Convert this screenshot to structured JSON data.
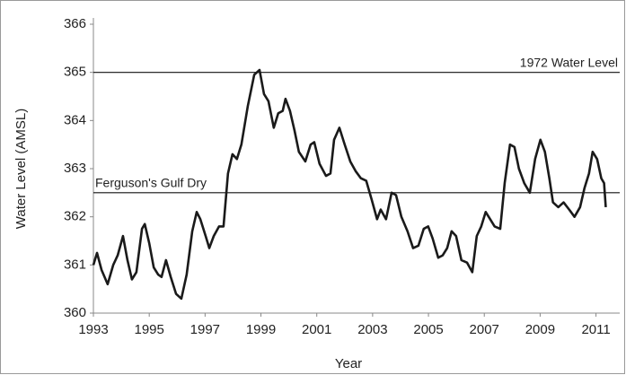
{
  "chart_data": {
    "type": "line",
    "x_label": "Year",
    "y_label": "Water Level (AMSL)",
    "x": [
      1993.0,
      1993.13,
      1993.29,
      1993.51,
      1993.71,
      1993.87,
      1994.06,
      1994.22,
      1994.38,
      1994.54,
      1994.74,
      1994.84,
      1995.0,
      1995.16,
      1995.32,
      1995.44,
      1995.6,
      1995.77,
      1995.96,
      1996.15,
      1996.34,
      1996.54,
      1996.7,
      1996.83,
      1997.02,
      1997.15,
      1997.31,
      1997.5,
      1997.66,
      1997.82,
      1997.98,
      1998.14,
      1998.3,
      1998.53,
      1998.76,
      1998.95,
      1999.11,
      1999.27,
      1999.46,
      1999.62,
      1999.78,
      1999.88,
      2000.04,
      2000.2,
      2000.36,
      2000.59,
      2000.78,
      2000.91,
      2001.1,
      2001.33,
      2001.49,
      2001.62,
      2001.81,
      2002.0,
      2002.2,
      2002.39,
      2002.58,
      2002.77,
      2002.97,
      2003.16,
      2003.29,
      2003.48,
      2003.68,
      2003.84,
      2004.03,
      2004.25,
      2004.45,
      2004.64,
      2004.83,
      2004.99,
      2005.15,
      2005.35,
      2005.51,
      2005.67,
      2005.83,
      2005.99,
      2006.18,
      2006.38,
      2006.57,
      2006.73,
      2006.89,
      2007.05,
      2007.21,
      2007.37,
      2007.57,
      2007.73,
      2007.92,
      2008.08,
      2008.24,
      2008.43,
      2008.63,
      2008.82,
      2009.01,
      2009.17,
      2009.33,
      2009.46,
      2009.65,
      2009.84,
      2010.04,
      2010.23,
      2010.43,
      2010.59,
      2010.75,
      2010.88,
      2011.04,
      2011.19,
      2011.29,
      2011.35
    ],
    "series": [
      {
        "color": "#1a1a1a",
        "values": [
          361.0,
          361.25,
          360.9,
          360.6,
          361.0,
          361.2,
          361.6,
          361.1,
          360.7,
          360.85,
          361.75,
          361.85,
          361.45,
          360.95,
          360.8,
          360.75,
          361.1,
          360.75,
          360.4,
          360.3,
          360.8,
          361.7,
          362.1,
          361.95,
          361.6,
          361.35,
          361.6,
          361.8,
          361.8,
          362.9,
          363.3,
          363.2,
          363.5,
          364.3,
          364.95,
          365.05,
          364.55,
          364.4,
          363.85,
          364.15,
          364.2,
          364.45,
          364.2,
          363.8,
          363.35,
          363.15,
          363.5,
          363.55,
          363.1,
          362.85,
          362.9,
          363.6,
          363.85,
          363.5,
          363.15,
          362.95,
          362.8,
          362.75,
          362.35,
          361.95,
          362.15,
          361.95,
          362.5,
          362.45,
          362.0,
          361.7,
          361.35,
          361.4,
          361.75,
          361.8,
          361.55,
          361.15,
          361.2,
          361.35,
          361.7,
          361.6,
          361.1,
          361.05,
          360.85,
          361.6,
          361.8,
          362.1,
          361.95,
          361.8,
          361.75,
          362.7,
          363.5,
          363.45,
          363.0,
          362.7,
          362.5,
          363.2,
          363.6,
          363.35,
          362.8,
          362.3,
          362.2,
          362.3,
          362.15,
          362.0,
          362.2,
          362.6,
          362.9,
          363.35,
          363.2,
          362.8,
          362.7,
          362.2
        ]
      }
    ],
    "reference_lines": [
      {
        "value": 365,
        "label": "1972 Water Level"
      },
      {
        "value": 362.5,
        "label": "Ferguson's Gulf Dry"
      }
    ],
    "xlim": [
      1993,
      2011.85
    ],
    "xticks": [
      1993,
      1995,
      1997,
      1999,
      2001,
      2003,
      2005,
      2007,
      2009,
      2011
    ],
    "ylim": [
      360,
      366
    ],
    "yticks": [
      360,
      361,
      362,
      363,
      364,
      365,
      366
    ],
    "grid": false
  }
}
